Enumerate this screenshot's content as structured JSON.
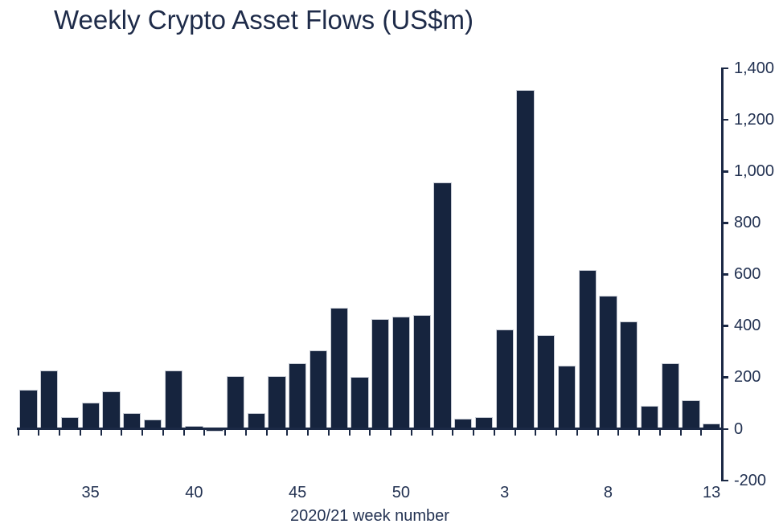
{
  "chart_data": {
    "type": "bar",
    "title": "Weekly Crypto Asset Flows (US$m)",
    "xlabel": "2020/21 week number",
    "ylabel": "",
    "categories": [
      "32",
      "33",
      "34",
      "35",
      "36",
      "37",
      "38",
      "39",
      "40",
      "41",
      "42",
      "43",
      "44",
      "45",
      "46",
      "47",
      "48",
      "49",
      "50",
      "51",
      "52",
      "1",
      "2",
      "3",
      "4",
      "5",
      "6",
      "7",
      "8",
      "9",
      "10",
      "11",
      "12",
      "13"
    ],
    "values": [
      150,
      225,
      45,
      100,
      145,
      60,
      35,
      225,
      10,
      -10,
      205,
      60,
      205,
      255,
      305,
      470,
      200,
      425,
      435,
      440,
      955,
      40,
      45,
      385,
      1315,
      365,
      245,
      615,
      515,
      415,
      90,
      255,
      110,
      20
    ],
    "x_tick_labels": [
      "35",
      "40",
      "45",
      "50",
      "3",
      "8",
      "13"
    ],
    "y_ticks": [
      1400,
      1200,
      1000,
      800,
      600,
      400,
      200,
      0,
      -200
    ],
    "y_tick_labels": [
      "1,400",
      "1,200",
      "1,000",
      "800",
      "600",
      "400",
      "200",
      "0",
      "-200"
    ],
    "ylim": [
      -200,
      1400
    ],
    "grid": false,
    "legend": "none",
    "y_axis_position": "right",
    "bar_color": "#16243E",
    "bar_border_color": "#C9CDD6",
    "axis_color": "#1B2945",
    "text_color": "#233252"
  }
}
